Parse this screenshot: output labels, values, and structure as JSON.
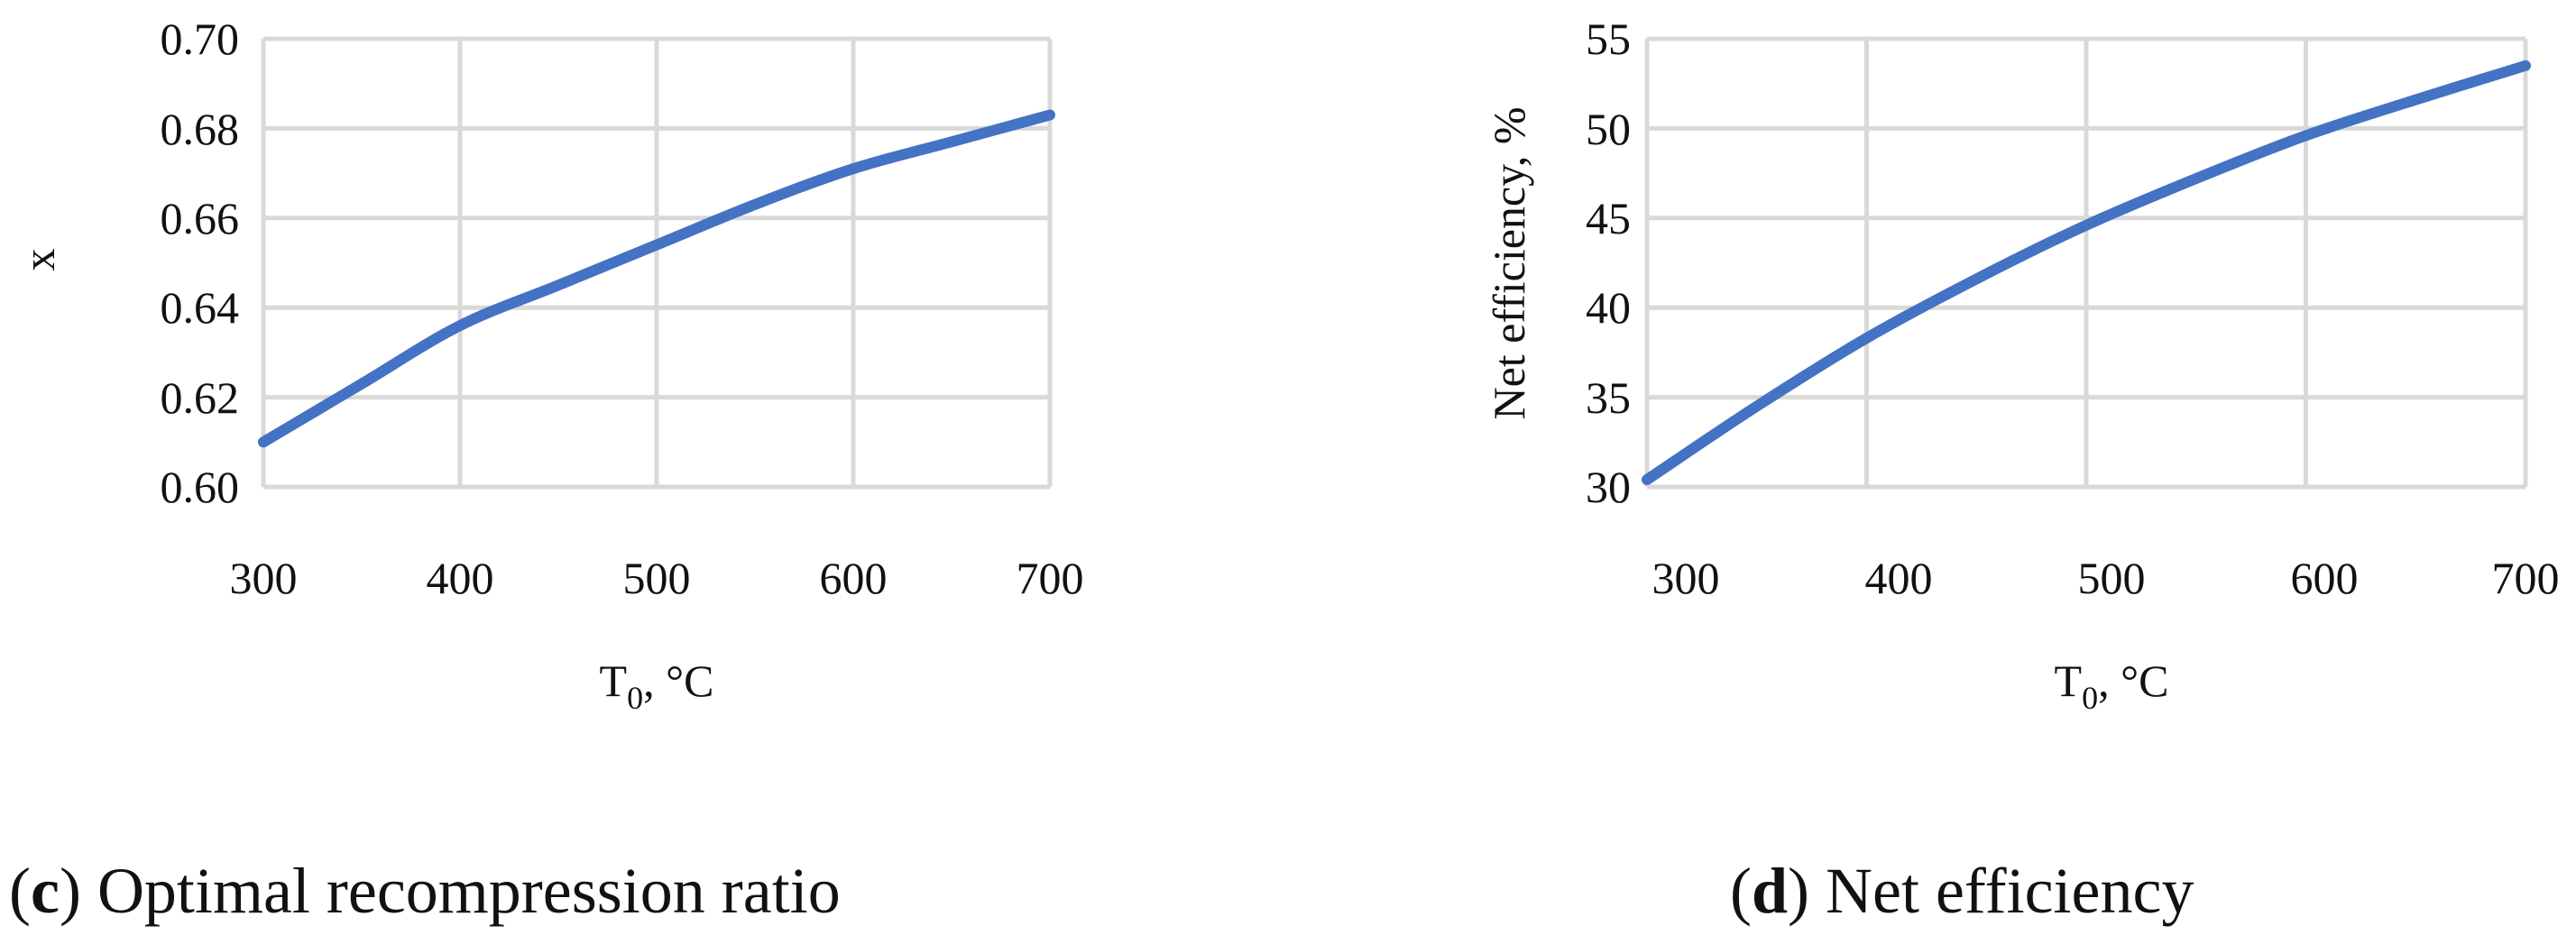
{
  "colors": {
    "series": "#4472c4",
    "grid": "#d9d9d9",
    "text": "#111111"
  },
  "chart_data": [
    {
      "type": "line",
      "panel_letter": "c",
      "caption": " Optimal recompression ratio",
      "xlabel_main": "T",
      "xlabel_sub": "0",
      "xlabel_unit": ", °C",
      "ylabel": "x",
      "xlim": [
        300,
        700
      ],
      "ylim": [
        0.6,
        0.7
      ],
      "xticks": [
        300,
        400,
        500,
        600,
        700
      ],
      "xtick_labels": [
        "300",
        "400",
        "500",
        "600",
        "700"
      ],
      "yticks": [
        0.6,
        0.62,
        0.64,
        0.66,
        0.68,
        0.7
      ],
      "ytick_labels": [
        "0.60",
        "0.62",
        "0.64",
        "0.66",
        "0.68",
        "0.70"
      ],
      "grid": true,
      "series": [
        {
          "x": [
            300,
            350,
            400,
            450,
            500,
            550,
            600,
            650,
            700
          ],
          "y": [
            0.61,
            0.623,
            0.636,
            0.645,
            0.654,
            0.663,
            0.671,
            0.677,
            0.683
          ]
        }
      ]
    },
    {
      "type": "line",
      "panel_letter": "d",
      "caption": " Net efficiency",
      "xlabel_main": "T",
      "xlabel_sub": "0",
      "xlabel_unit": ", °C",
      "ylabel": "Net efficiency, %",
      "xlim": [
        300,
        700
      ],
      "ylim": [
        30,
        55
      ],
      "xticks": [
        300,
        400,
        500,
        600,
        700
      ],
      "xtick_labels": [
        "300",
        "400",
        "500",
        "600",
        "700"
      ],
      "yticks": [
        30,
        35,
        40,
        45,
        50,
        55
      ],
      "ytick_labels": [
        "30",
        "35",
        "40",
        "45",
        "50",
        "55"
      ],
      "grid": true,
      "series": [
        {
          "x": [
            300,
            350,
            400,
            450,
            500,
            550,
            600,
            650,
            700
          ],
          "y": [
            30.4,
            34.5,
            38.3,
            41.6,
            44.6,
            47.2,
            49.6,
            51.6,
            53.5
          ]
        }
      ]
    }
  ]
}
